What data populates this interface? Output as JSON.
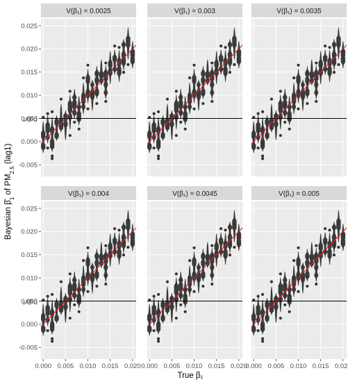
{
  "chart_data": {
    "type": "violin",
    "layout": "facet-grid-2x3",
    "xlabel": "True β₁",
    "ylabel_parts": {
      "lead": "Bayesian ",
      "beta_hat": "β̂",
      "sub1": "1",
      "mid": " of PM",
      "sub25": "2.5",
      "tail": " (lag1)"
    },
    "xlim": [
      -0.0005,
      0.0208
    ],
    "ylim": [
      -0.0075,
      0.0265
    ],
    "x_ticks": [
      0.0,
      0.005,
      0.01,
      0.015,
      0.02
    ],
    "x_tick_labels": [
      "0.000",
      "0.005",
      "0.010",
      "0.015",
      "0.020"
    ],
    "y_ticks": [
      -0.005,
      0.0,
      0.005,
      0.01,
      0.015,
      0.02,
      0.025
    ],
    "y_tick_labels": [
      "-0.005",
      "0.000",
      "0.005",
      "0.010",
      "0.015",
      "0.020",
      "0.025"
    ],
    "mu_label": "μ(β₁)",
    "mu_value": 0.005,
    "identity_line": {
      "from": [
        -0.0005,
        -0.0005
      ],
      "to": [
        0.0208,
        0.0208
      ],
      "color": "#e41a1c"
    },
    "panel_bg": "#ebebeb",
    "strip_bg": "#d9d9d9",
    "violin_color": "#3a3a3a",
    "true_beta": [
      0.0,
      0.001,
      0.002,
      0.003,
      0.004,
      0.005,
      0.006,
      0.007,
      0.008,
      0.009,
      0.01,
      0.011,
      0.012,
      0.013,
      0.014,
      0.015,
      0.016,
      0.017,
      0.018,
      0.019,
      0.02
    ],
    "panels": [
      {
        "strip": "V(β₁) = 0.0025"
      },
      {
        "strip": "V(β₁) = 0.003"
      },
      {
        "strip": "V(β₁) = 0.0035"
      },
      {
        "strip": "V(β₁) = 0.004"
      },
      {
        "strip": "V(β₁) = 0.0045"
      },
      {
        "strip": "V(β₁) = 0.005"
      }
    ]
  }
}
